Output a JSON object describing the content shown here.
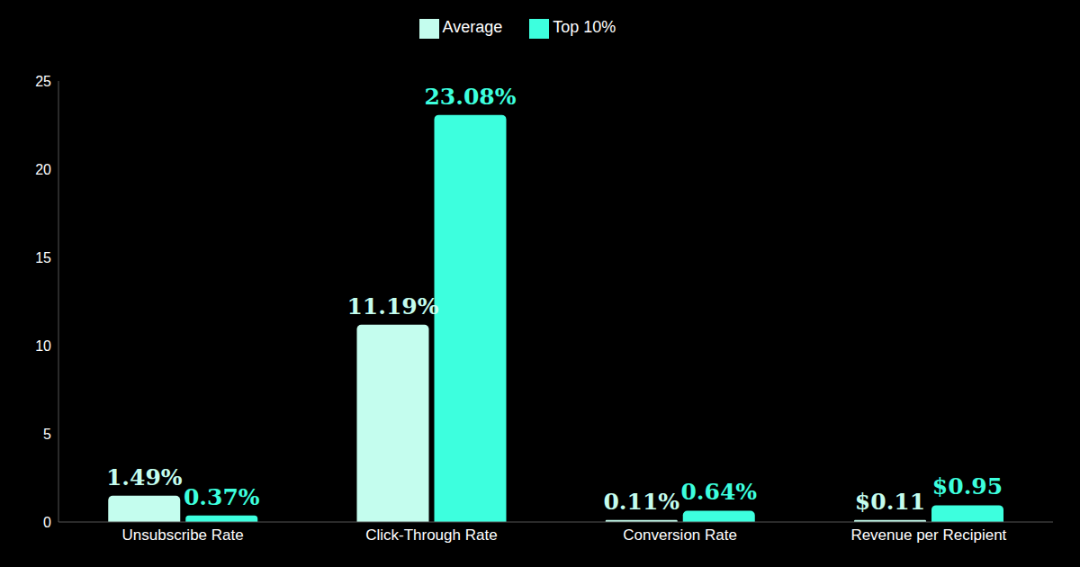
{
  "chart_data": {
    "type": "bar",
    "categories": [
      "Unsubscribe Rate",
      "Click-Through Rate",
      "Conversion Rate",
      "Revenue per Recipient"
    ],
    "series": [
      {
        "name": "Average",
        "color": "#c4fdee",
        "values": [
          1.49,
          11.19,
          0.11,
          0.11
        ],
        "value_labels": [
          "1.49%",
          "11.19%",
          "0.11%",
          "$0.11"
        ]
      },
      {
        "name": "Top 10%",
        "color": "#3dffde",
        "values": [
          0.37,
          23.08,
          0.64,
          0.95
        ],
        "value_labels": [
          "0.37%",
          "23.08%",
          "0.64%",
          "$0.95"
        ]
      }
    ],
    "ylim": [
      0,
      25
    ],
    "yticks": [
      0,
      5,
      10,
      15,
      20,
      25
    ],
    "grid": false,
    "legend": "top",
    "data_labels": true
  }
}
